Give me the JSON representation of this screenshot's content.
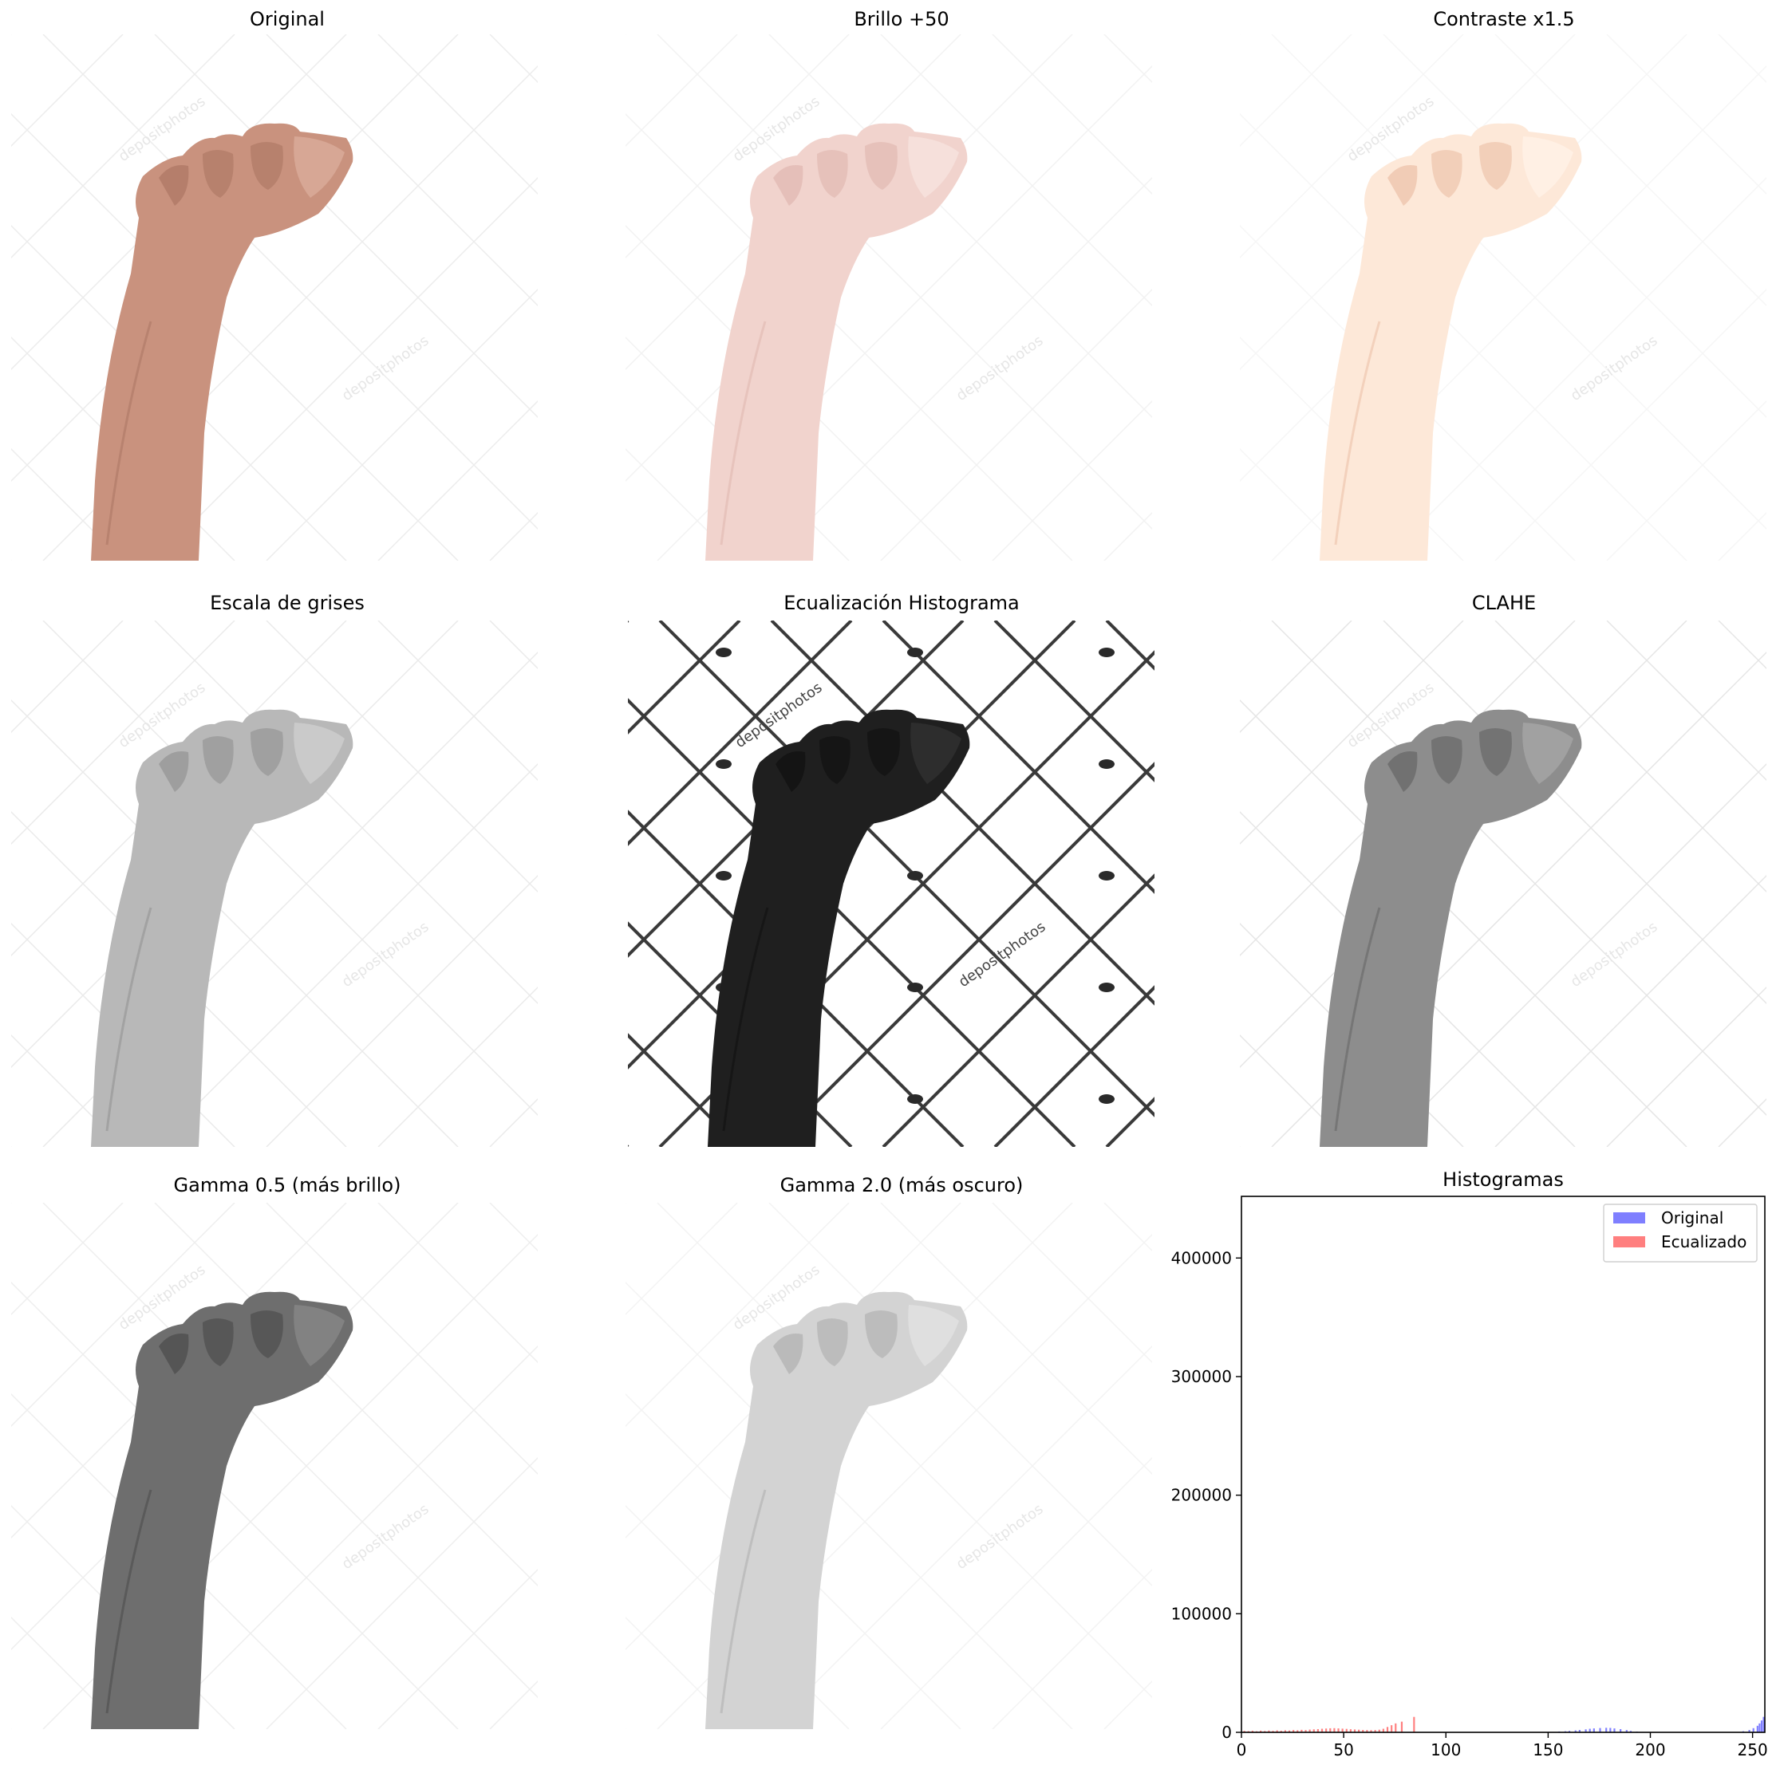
{
  "panels": [
    {
      "title": "Original"
    },
    {
      "title": "Brillo +50"
    },
    {
      "title": "Contraste x1.5"
    },
    {
      "title": "Escala de grises"
    },
    {
      "title": "Ecualización Histograma"
    },
    {
      "title": "CLAHE"
    },
    {
      "title": "Gamma 0.5 (más brillo)"
    },
    {
      "title": "Gamma 2.0 (más oscuro)"
    }
  ],
  "watermark": "depositphotos",
  "chart_data": {
    "type": "bar",
    "title": "Histogramas",
    "xlabel": "",
    "ylabel": "",
    "xlim": [
      0,
      256
    ],
    "ylim": [
      0,
      452000
    ],
    "xticks": [
      0,
      50,
      100,
      150,
      200,
      250
    ],
    "yticks": [
      0,
      100000,
      200000,
      300000,
      400000
    ],
    "legend_position": "top-right",
    "grid": false,
    "series": [
      {
        "name": "Original",
        "color": "#0000ff",
        "opacity": 0.5,
        "points": [
          [
            150,
            400
          ],
          [
            155,
            700
          ],
          [
            158,
            900
          ],
          [
            160,
            1200
          ],
          [
            163,
            1600
          ],
          [
            165,
            2000
          ],
          [
            168,
            2500
          ],
          [
            170,
            3000
          ],
          [
            172,
            3300
          ],
          [
            175,
            3600
          ],
          [
            178,
            3800
          ],
          [
            180,
            3700
          ],
          [
            182,
            3300
          ],
          [
            185,
            2700
          ],
          [
            188,
            1900
          ],
          [
            190,
            1200
          ],
          [
            193,
            600
          ],
          [
            196,
            300
          ],
          [
            200,
            150
          ],
          [
            240,
            300
          ],
          [
            245,
            900
          ],
          [
            248,
            2000
          ],
          [
            250,
            3500
          ],
          [
            252,
            5500
          ],
          [
            253,
            7500
          ],
          [
            254,
            10000
          ],
          [
            255,
            13000
          ]
        ]
      },
      {
        "name": "Ecualizado",
        "color": "#ff0000",
        "opacity": 0.5,
        "points": [
          [
            1,
            1200
          ],
          [
            3,
            1000
          ],
          [
            5,
            1300
          ],
          [
            7,
            900
          ],
          [
            9,
            1400
          ],
          [
            11,
            1100
          ],
          [
            13,
            1500
          ],
          [
            15,
            1200
          ],
          [
            17,
            1600
          ],
          [
            19,
            1300
          ],
          [
            21,
            1700
          ],
          [
            23,
            1500
          ],
          [
            25,
            1900
          ],
          [
            27,
            1700
          ],
          [
            29,
            2100
          ],
          [
            31,
            1900
          ],
          [
            33,
            2300
          ],
          [
            35,
            2500
          ],
          [
            37,
            2700
          ],
          [
            39,
            3000
          ],
          [
            41,
            3200
          ],
          [
            43,
            3400
          ],
          [
            45,
            3500
          ],
          [
            47,
            3300
          ],
          [
            49,
            3100
          ],
          [
            51,
            2900
          ],
          [
            53,
            2600
          ],
          [
            55,
            2400
          ],
          [
            57,
            2200
          ],
          [
            59,
            2000
          ],
          [
            61,
            1900
          ],
          [
            63,
            1800
          ],
          [
            65,
            1900
          ],
          [
            67,
            2200
          ],
          [
            69,
            3000
          ],
          [
            71,
            4500
          ],
          [
            73,
            6000
          ],
          [
            75,
            7500
          ],
          [
            78,
            9000
          ],
          [
            84,
            13000
          ]
        ]
      }
    ]
  }
}
